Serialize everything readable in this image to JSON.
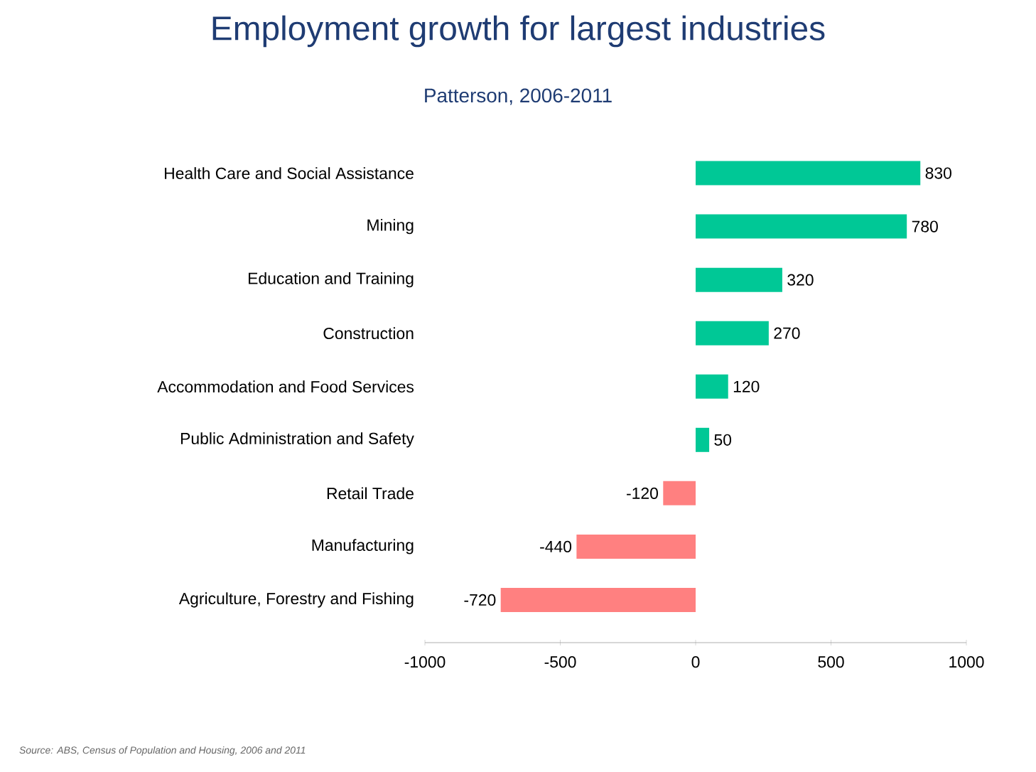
{
  "chart_data": {
    "type": "bar",
    "orientation": "horizontal",
    "title": "Employment growth for largest industries",
    "subtitle": "Patterson, 2006-2011",
    "categories": [
      "Health Care and Social Assistance",
      "Mining",
      "Education and Training",
      "Construction",
      "Accommodation and Food Services",
      "Public Administration and Safety",
      "Retail Trade",
      "Manufacturing",
      "Agriculture, Forestry and Fishing"
    ],
    "values": [
      830,
      780,
      320,
      270,
      120,
      50,
      -120,
      -440,
      -720
    ],
    "colors": [
      "#00c896",
      "#00c896",
      "#00c896",
      "#00c896",
      "#00c896",
      "#00c896",
      "#ff8080",
      "#ff8080",
      "#ff8080"
    ],
    "data_labels": true,
    "xlim": [
      -1000,
      1000
    ],
    "xticks": [
      -1000,
      -500,
      0,
      500,
      1000
    ],
    "grid": false,
    "annotations": [
      "Source:  ABS, Census of Population and Housing, 2006 and 2011"
    ]
  }
}
